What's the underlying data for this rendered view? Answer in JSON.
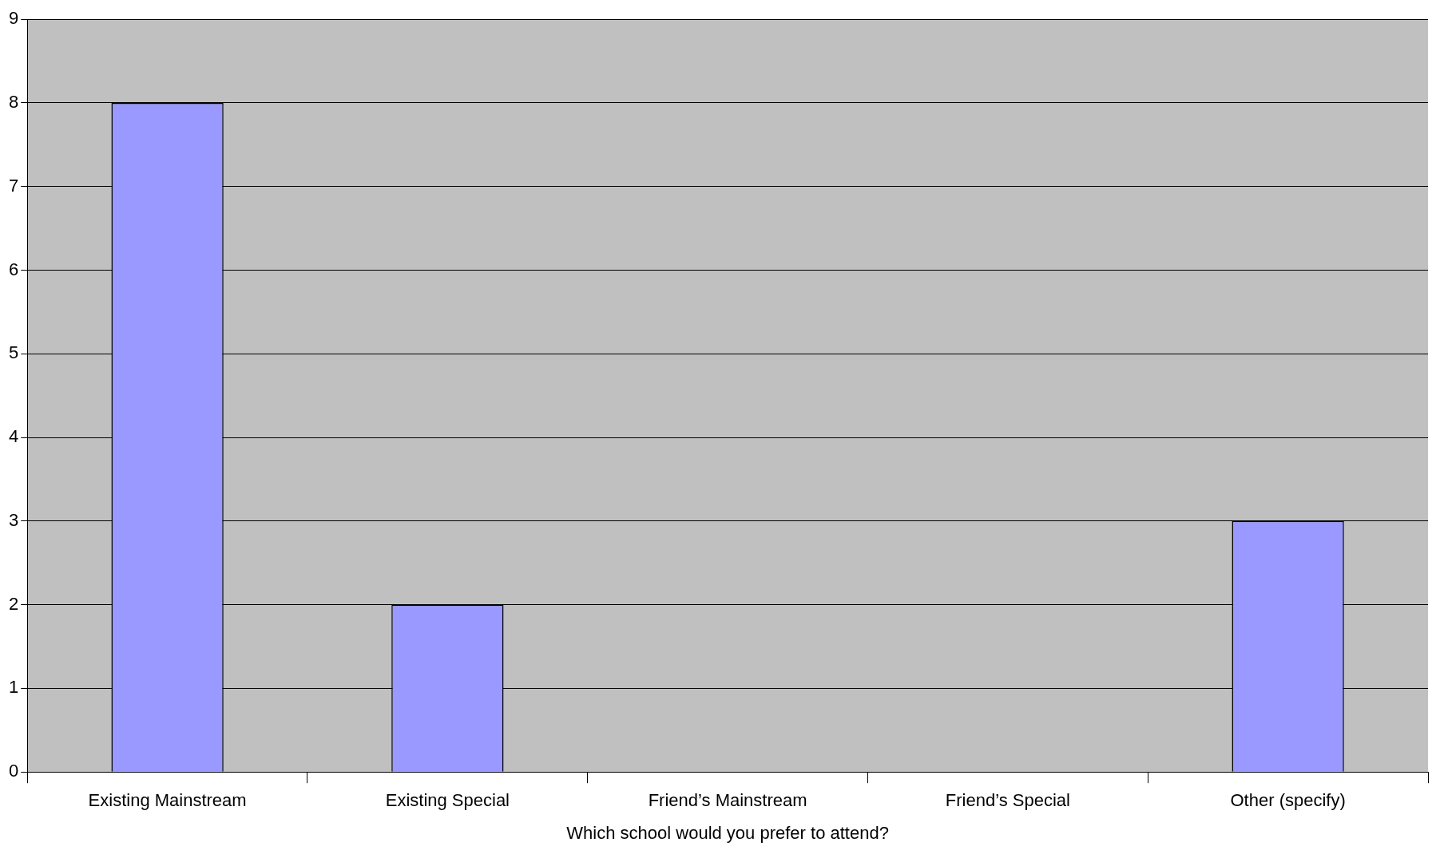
{
  "chart_data": {
    "type": "bar",
    "xlabel": "Which school would you prefer to attend?",
    "categories": [
      "Existing Mainstream",
      "Existing Special",
      "Friend’s Mainstream",
      "Friend’s Special",
      "Other (specify)"
    ],
    "values": [
      8,
      2,
      0,
      0,
      3
    ],
    "color": "#9999ff",
    "ylim": [
      0,
      9
    ],
    "yticks": [
      0,
      1,
      2,
      3,
      4,
      5,
      6,
      7,
      8,
      9
    ],
    "grid": "y",
    "legend": false
  }
}
